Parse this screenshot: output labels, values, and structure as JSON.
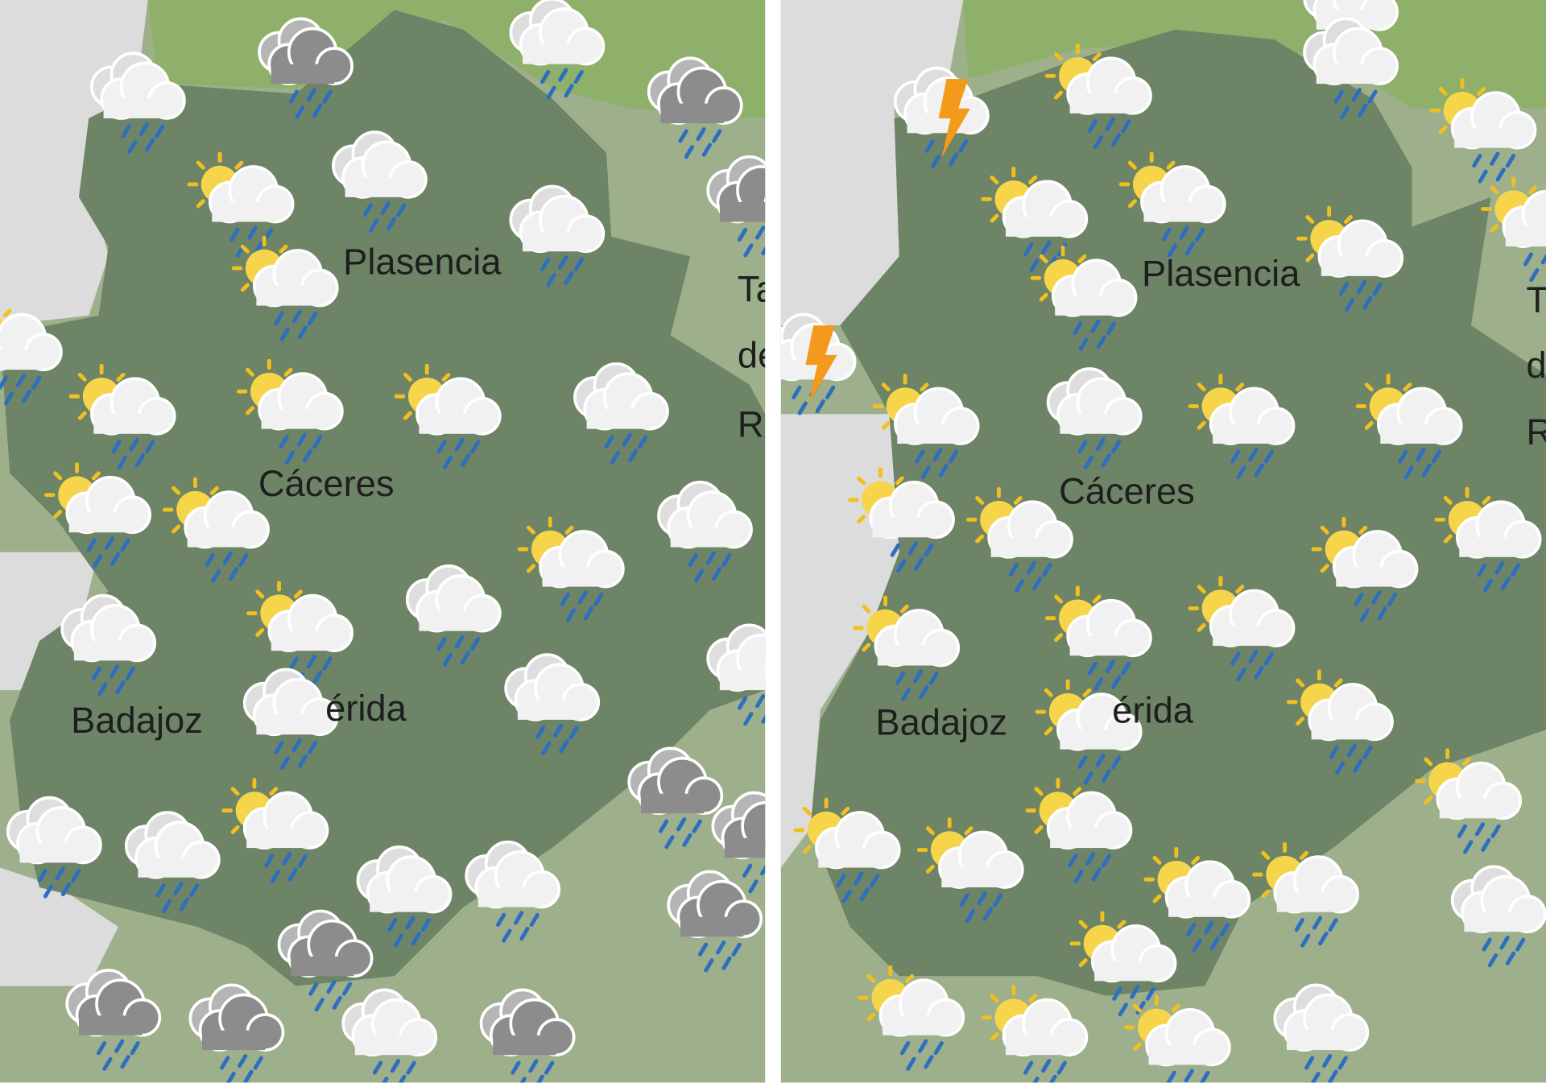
{
  "panels": [
    {
      "id": "left",
      "labels": {
        "plasencia": "Plasencia",
        "caceres": "Cáceres",
        "badajoz": "Badajoz",
        "merida": "érida",
        "edge1": "Ta",
        "edge2": "de",
        "edge3": "R"
      },
      "icons": [
        "cloud-rain",
        "dark-cloud-rain",
        "cloud-rain",
        "dark-cloud-rain",
        "sun-cloud-rain",
        "cloud-rain",
        "cloud-rain",
        "sun-cloud-rain",
        "sun-cloud-rain",
        "sun-cloud-rain",
        "sun-cloud-rain",
        "cloud-rain",
        "sun-cloud-rain",
        "sun-cloud-rain",
        "cloud-rain",
        "sun-cloud-rain",
        "sun-cloud-rain",
        "cloud-rain",
        "cloud-rain",
        "cloud-rain",
        "cloud-rain",
        "dark-cloud-rain",
        "sun-cloud-rain",
        "cloud-rain",
        "cloud-rain",
        "cloud-rain",
        "cloud-rain",
        "dark-cloud-rain",
        "dark-cloud-rain",
        "dark-cloud-rain",
        "dark-cloud-rain",
        "cloud-rain",
        "dark-cloud-rain",
        "dark-cloud-rain",
        "sun-cloud-rain",
        "cloud-rain",
        "dark-cloud-rain"
      ]
    },
    {
      "id": "right",
      "labels": {
        "plasencia": "Plasencia",
        "caceres": "Cáceres",
        "badajoz": "Badajoz",
        "merida": "érida",
        "edge1": "T",
        "edge2": "d",
        "edge3": "R"
      },
      "icons": [
        "storm",
        "sun-cloud-rain",
        "cloud-rain",
        "cloud-rain",
        "sun-cloud-rain",
        "sun-cloud-rain",
        "sun-cloud-rain",
        "sun-cloud-rain",
        "sun-cloud-rain",
        "storm",
        "sun-cloud-rain",
        "cloud-rain",
        "sun-cloud-rain",
        "sun-cloud-rain",
        "sun-cloud-rain",
        "sun-cloud-rain",
        "sun-cloud-rain",
        "sun-cloud-rain",
        "sun-cloud-rain",
        "sun-cloud-rain",
        "sun-cloud-rain",
        "sun-cloud-rain",
        "sun-cloud-rain",
        "sun-cloud-rain",
        "sun-cloud-rain",
        "sun-cloud-rain",
        "sun-cloud-rain",
        "sun-cloud-rain",
        "sun-cloud-rain",
        "sun-cloud-rain",
        "cloud-rain",
        "sun-cloud-rain",
        "sun-cloud-rain",
        "sun-cloud-rain",
        "cloud-rain",
        "sun-cloud-rain"
      ]
    }
  ],
  "colors": {
    "region": "#6e8466",
    "land": "#9db08b",
    "sea": "#dcdcdc",
    "mountains": "#8fb06a",
    "sun": "#f6d54a",
    "rain": "#2d6fbf",
    "lightning": "#f39a1c"
  }
}
